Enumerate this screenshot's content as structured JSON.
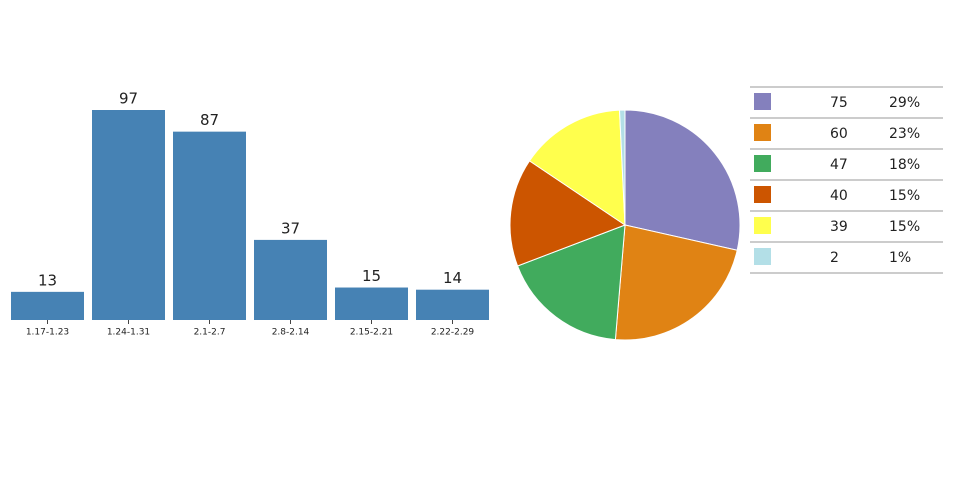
{
  "chart_data": [
    {
      "type": "bar",
      "categories": [
        "1.17-1.23",
        "1.24-1.31",
        "2.1-2.7",
        "2.8-2.14",
        "2.15-2.21",
        "2.22-2.29"
      ],
      "values": [
        13,
        97,
        87,
        37,
        15,
        14
      ],
      "color": "#4682b4"
    },
    {
      "type": "pie",
      "values": [
        75,
        60,
        47,
        40,
        39,
        2
      ],
      "percent_labels": [
        "29%",
        "23%",
        "18%",
        "15%",
        "15%",
        "1%"
      ],
      "colors": [
        "#8480bd",
        "#e08314",
        "#41ab5d",
        "#cc5500",
        "#ffff4d",
        "#b3dfe7"
      ]
    }
  ]
}
